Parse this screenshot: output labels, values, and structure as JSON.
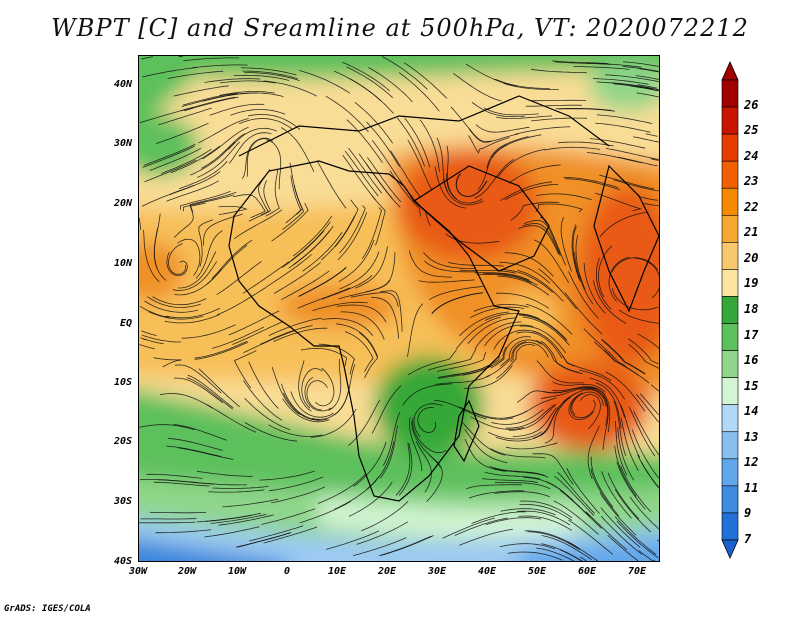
{
  "title": "WBPT [C] and Sreamline at 500hPa, VT: 2020072212",
  "y_axis_labels": [
    "40N",
    "30N",
    "20N",
    "10N",
    "EQ",
    "10S",
    "20S",
    "30S",
    "40S"
  ],
  "x_axis_labels": [
    "30W",
    "20W",
    "10W",
    "0",
    "10E",
    "20E",
    "30E",
    "40E",
    "50E",
    "60E",
    "70E"
  ],
  "colorbar": {
    "labels": [
      "26",
      "25",
      "24",
      "23",
      "22",
      "21",
      "20",
      "19",
      "18",
      "17",
      "16",
      "15",
      "14",
      "13",
      "12",
      "11",
      "9",
      "7"
    ],
    "colors": [
      "#a00000",
      "#c81400",
      "#e63c00",
      "#f06000",
      "#f58a00",
      "#f5a830",
      "#f8c96c",
      "#fbe5a0",
      "#34a838",
      "#5cc05c",
      "#90d68a",
      "#d4f5d4",
      "#b0d8f8",
      "#88bff0",
      "#60a6ea",
      "#3e8ce2",
      "#2271d8"
    ]
  },
  "credit": "GrADS: IGES/COLA",
  "palette": {
    "dark_red": "#c81400",
    "orange_red": "#e85a12",
    "orange": "#f09028",
    "light_orange": "#f7bf58",
    "pale_yellow": "#f9dd96",
    "green": "#3ea83e",
    "mid_green": "#6cc464",
    "light_green": "#a8dc9c",
    "pale_cyan": "#dff7ef",
    "light_blue": "#9ccaf2",
    "blue": "#3a86dc",
    "streamline": "#111111"
  }
}
